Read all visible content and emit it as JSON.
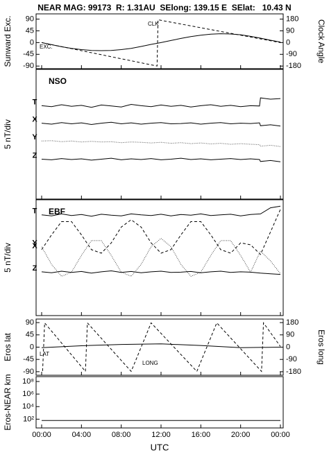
{
  "header": {
    "title": "NEAR MAG: 99173  R: 1.31AU  SElong: 139.15 E  SElat:   10.43 N"
  },
  "chart_data": [
    {
      "type": "line",
      "ylabel": "Sunward Exc.",
      "y2label": "Clock Angle",
      "xlim": [
        0,
        24
      ],
      "ylim": [
        -100,
        110
      ],
      "yticks": [
        90,
        45,
        0,
        -45,
        -90
      ],
      "y2lim": [
        -200,
        220
      ],
      "y2ticks": [
        180,
        90,
        0,
        -90,
        -180
      ],
      "series": [
        {
          "name": "EXC.",
          "color": "#000000",
          "style": "solid",
          "x": [
            0,
            1,
            2,
            3,
            4,
            5,
            6,
            7,
            8,
            9,
            10,
            11,
            12,
            13,
            14,
            15,
            16,
            17,
            18,
            19,
            20,
            21,
            22,
            23,
            24
          ],
          "values": [
            0,
            -8,
            -16,
            -22,
            -27,
            -30,
            -31,
            -30,
            -27,
            -22,
            -15,
            -7,
            0,
            8,
            16,
            23,
            28,
            32,
            34,
            33,
            30,
            24,
            17,
            9,
            2
          ]
        },
        {
          "name": "CLK",
          "color": "#000000",
          "style": "dashed",
          "axis": "y2",
          "x": [
            0,
            11.6,
            11.7,
            24
          ],
          "values": [
            0,
            -180,
            175,
            0
          ]
        }
      ]
    },
    {
      "type": "line",
      "title": "NSO",
      "ylabel": "5 nT/div",
      "xlim": [
        0,
        24
      ],
      "ylim": [
        0,
        40
      ],
      "series": [
        {
          "name": "T",
          "color": "#000000",
          "style": "solid",
          "x": [
            0,
            1,
            2,
            3,
            4,
            5,
            6,
            7,
            8,
            9,
            10,
            11,
            12,
            13,
            14,
            15,
            16,
            17,
            18,
            19,
            20,
            21,
            21.9,
            22,
            23,
            24
          ],
          "values": [
            28.8,
            28.5,
            29.1,
            28.6,
            28.9,
            28.3,
            29.0,
            28.7,
            28.4,
            29.2,
            28.8,
            28.5,
            29.0,
            28.6,
            28.9,
            28.4,
            28.8,
            29.1,
            28.6,
            28.9,
            28.5,
            28.8,
            28.7,
            31.2,
            30.8,
            31.0
          ]
        },
        {
          "name": "X",
          "color": "#000000",
          "style": "solid",
          "x": [
            0,
            1,
            2,
            3,
            4,
            5,
            6,
            7,
            8,
            9,
            10,
            11,
            12,
            13,
            14,
            15,
            16,
            17,
            18,
            19,
            20,
            21,
            21.9,
            22,
            23,
            24
          ],
          "values": [
            23.4,
            23.1,
            23.6,
            23.2,
            23.5,
            23.0,
            23.4,
            23.7,
            23.2,
            23.5,
            23.1,
            23.4,
            23.6,
            23.2,
            23.3,
            23.5,
            23.1,
            23.4,
            23.6,
            23.2,
            23.4,
            23.3,
            23.5,
            22.6,
            22.9,
            22.5
          ]
        },
        {
          "name": "Y",
          "color": "#555555",
          "style": "dotted",
          "x": [
            0,
            1,
            2,
            3,
            4,
            5,
            6,
            7,
            8,
            9,
            10,
            11,
            12,
            13,
            14,
            15,
            16,
            17,
            18,
            19,
            20,
            21,
            21.9,
            22,
            23,
            24
          ],
          "values": [
            17.9,
            18.0,
            17.7,
            17.9,
            17.6,
            17.8,
            17.6,
            17.7,
            17.4,
            17.6,
            17.5,
            17.3,
            17.5,
            17.2,
            17.4,
            17.1,
            17.3,
            17.0,
            17.2,
            16.9,
            17.1,
            16.9,
            16.8,
            16.3,
            16.6,
            16.2
          ]
        },
        {
          "name": "Z",
          "color": "#000000",
          "style": "solid",
          "x": [
            0,
            1,
            2,
            3,
            4,
            5,
            6,
            7,
            8,
            9,
            10,
            11,
            12,
            13,
            14,
            15,
            16,
            17,
            18,
            19,
            20,
            21,
            21.9,
            22,
            23,
            24
          ],
          "values": [
            12.3,
            12.1,
            12.5,
            12.2,
            12.4,
            12.0,
            12.3,
            12.6,
            12.1,
            12.4,
            12.2,
            12.5,
            12.1,
            12.3,
            12.6,
            12.2,
            12.4,
            12.1,
            12.3,
            12.5,
            12.2,
            12.4,
            12.2,
            11.6,
            11.9,
            11.5
          ]
        }
      ]
    },
    {
      "type": "line",
      "title": "EBF",
      "ylabel": "5 nT/div",
      "xlim": [
        0,
        24
      ],
      "ylim": [
        0,
        36
      ],
      "series": [
        {
          "name": "T",
          "color": "#000000",
          "style": "solid",
          "x": [
            0,
            1,
            2,
            3,
            4,
            5,
            6,
            7,
            8,
            9,
            10,
            11,
            12,
            13,
            14,
            15,
            16,
            17,
            18,
            19,
            20,
            21,
            22,
            23,
            24
          ],
          "values": [
            31.3,
            31.0,
            31.6,
            31.1,
            31.4,
            30.9,
            31.5,
            31.2,
            31.0,
            31.6,
            31.3,
            31.1,
            31.5,
            31.0,
            31.4,
            31.2,
            31.6,
            31.1,
            31.3,
            31.5,
            31.0,
            31.4,
            31.6,
            33.5,
            34.0
          ]
        },
        {
          "name": "X",
          "color": "#000000",
          "style": "dashed",
          "x": [
            0,
            1,
            2,
            3,
            4,
            5,
            6,
            7,
            8,
            9,
            10,
            11,
            12,
            13,
            14,
            15,
            16,
            17,
            18,
            19,
            20,
            21,
            22,
            23,
            24
          ],
          "values": [
            20.5,
            25.1,
            29.2,
            29.2,
            25.1,
            20.5,
            19.4,
            22.6,
            27.5,
            29.8,
            27.5,
            22.6,
            19.4,
            20.5,
            25.1,
            29.2,
            29.2,
            25.1,
            20.5,
            19.4,
            22.6,
            22.0,
            19.0,
            26.0,
            33.0
          ]
        },
        {
          "name": "Y",
          "color": "#444444",
          "style": "dotted",
          "x": [
            0,
            1,
            2,
            3,
            4,
            5,
            6,
            7,
            8,
            9,
            10,
            11,
            12,
            13,
            14,
            15,
            16,
            17,
            18,
            19,
            20,
            21,
            22,
            23,
            24
          ],
          "values": [
            21.4,
            15.9,
            12.2,
            13.5,
            18.7,
            23.3,
            23.3,
            18.7,
            13.5,
            12.2,
            15.9,
            21.4,
            24.0,
            21.4,
            15.9,
            12.2,
            13.5,
            18.7,
            23.3,
            23.3,
            18.7,
            13.5,
            20.0,
            17.0,
            13.0
          ]
        },
        {
          "name": "Z",
          "color": "#000000",
          "style": "solid",
          "x": [
            0,
            1,
            2,
            3,
            4,
            5,
            6,
            7,
            8,
            9,
            10,
            11,
            12,
            13,
            14,
            15,
            16,
            17,
            18,
            19,
            20,
            21,
            22,
            23,
            24
          ],
          "values": [
            13.6,
            13.3,
            13.8,
            13.4,
            13.7,
            13.2,
            13.6,
            13.9,
            13.4,
            13.7,
            13.3,
            13.6,
            13.8,
            13.4,
            13.5,
            13.7,
            13.3,
            13.6,
            13.8,
            13.4,
            13.6,
            13.5,
            13.2,
            13.0,
            12.8
          ]
        }
      ]
    },
    {
      "type": "line",
      "ylabel": "Eros lat",
      "y2label": "Eros long",
      "xlim": [
        0,
        24
      ],
      "ylim": [
        -103,
        103
      ],
      "yticks": [
        90,
        45,
        0,
        -45,
        -90
      ],
      "y2lim": [
        -206,
        206
      ],
      "y2ticks": [
        180,
        90,
        0,
        -90,
        -180
      ],
      "series": [
        {
          "name": "LAT",
          "color": "#000000",
          "style": "solid",
          "x": [
            0,
            4,
            8,
            12,
            16,
            20,
            24
          ],
          "values": [
            -2,
            5,
            10,
            12,
            6,
            -2,
            0
          ]
        },
        {
          "name": "LONG",
          "color": "#000000",
          "style": "dashed",
          "axis": "y2",
          "x": [
            0.1,
            0.3,
            4.4,
            4.6,
            9.0,
            11.0,
            15.6,
            17.6,
            22.1,
            22.3,
            24.0
          ],
          "values": [
            -175,
            178,
            -178,
            178,
            -178,
            178,
            -178,
            178,
            -178,
            178,
            5
          ]
        }
      ]
    },
    {
      "type": "line",
      "ylabel": "Eros-NEAR km",
      "xlabel": "UTC",
      "log": true,
      "xlim": [
        0,
        24
      ],
      "ylim": [
        4,
        600000000
      ],
      "yticks": [
        {
          "value": 100000000,
          "label": "10⁸"
        },
        {
          "value": 1000000,
          "label": "10⁶"
        },
        {
          "value": 10000,
          "label": "10⁴"
        },
        {
          "value": 100,
          "label": "10²"
        }
      ],
      "xticks": [
        {
          "value": 0,
          "label": "00:00"
        },
        {
          "value": 4,
          "label": "04:00"
        },
        {
          "value": 8,
          "label": "08:00"
        },
        {
          "value": 12,
          "label": "12:00"
        },
        {
          "value": 16,
          "label": "16:00"
        },
        {
          "value": 20,
          "label": "20:00"
        },
        {
          "value": 24,
          "label": "00:00"
        }
      ],
      "series": [
        {
          "color": "#000000",
          "style": "solid",
          "x": [
            0,
            24
          ],
          "values": [
            63,
            63
          ]
        }
      ]
    }
  ]
}
